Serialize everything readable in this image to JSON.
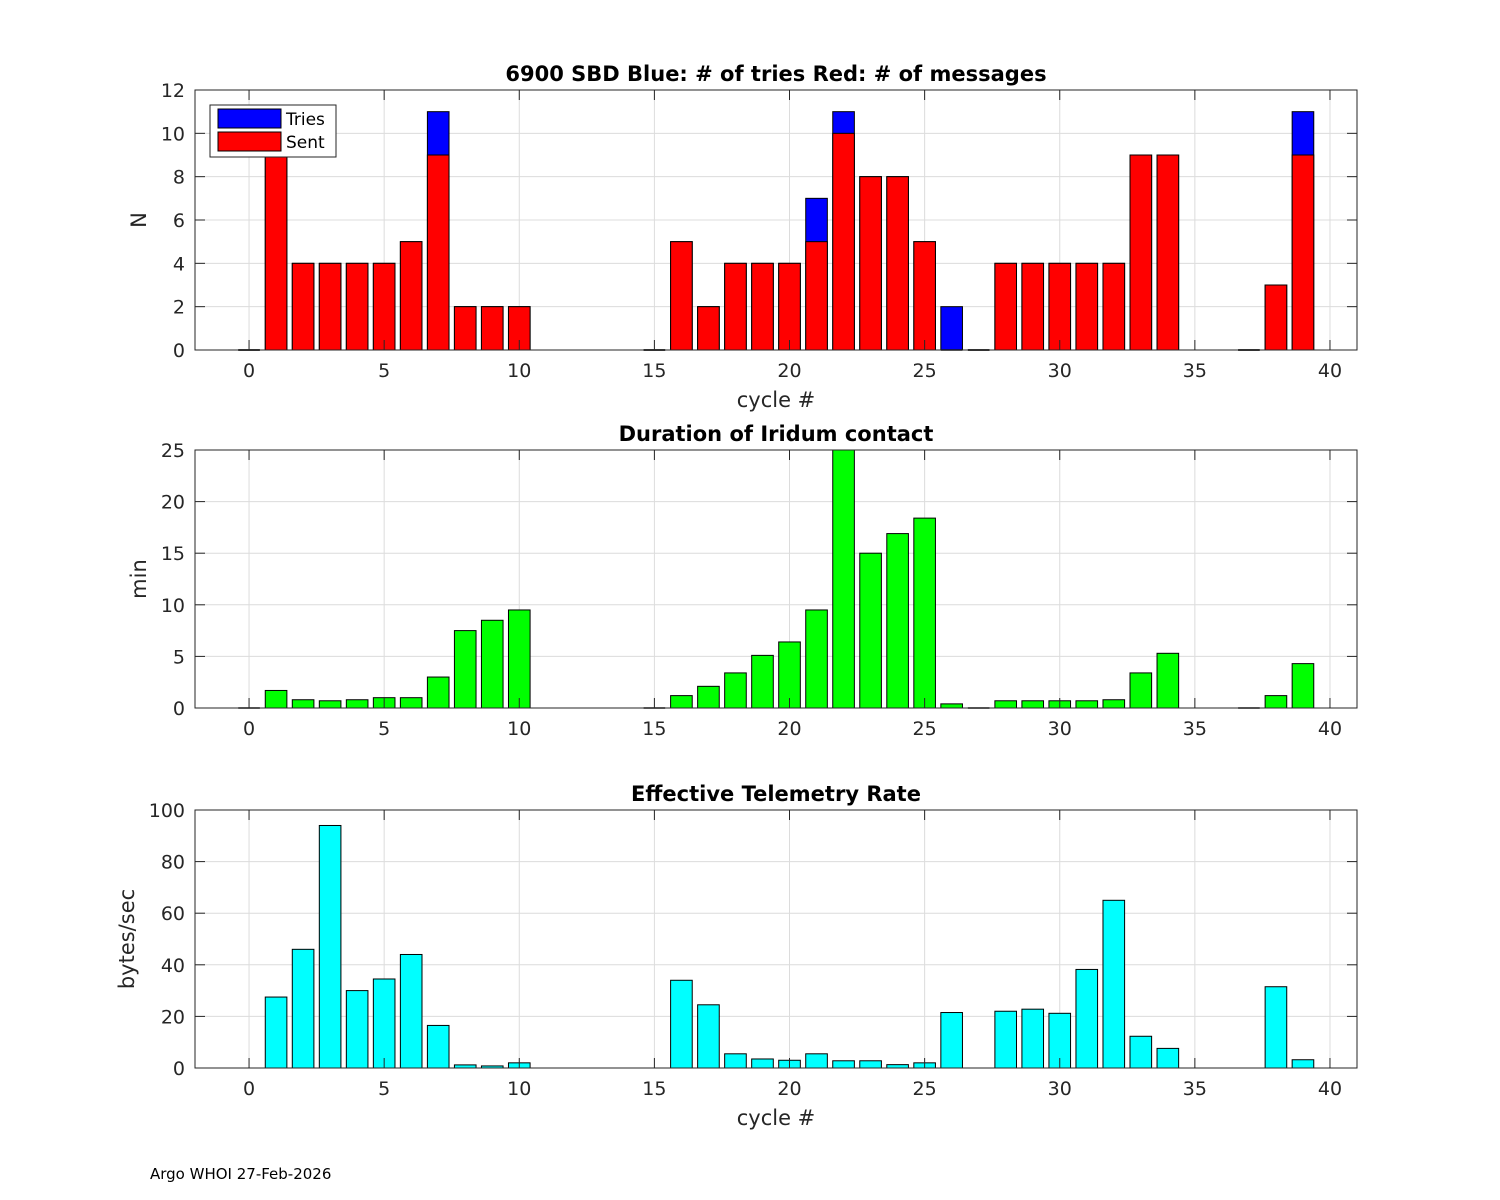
{
  "footer": "Argo WHOI 27-Feb-2026",
  "chart_data": [
    {
      "type": "bar",
      "title": "6900 SBD  Blue: # of tries   Red: # of messages",
      "xlabel": "cycle #",
      "ylabel": "N",
      "xlim": [
        -2,
        41
      ],
      "ylim": [
        0,
        12
      ],
      "xticks": [
        0,
        5,
        10,
        15,
        20,
        25,
        30,
        35,
        40
      ],
      "yticks": [
        0,
        2,
        4,
        6,
        8,
        10,
        12
      ],
      "grid": true,
      "legend": {
        "placement": "top-left",
        "entries": [
          {
            "name": "Tries",
            "color": "#0000ff"
          },
          {
            "name": "Sent",
            "color": "#ff0000"
          }
        ]
      },
      "x": [
        0,
        1,
        2,
        3,
        4,
        5,
        6,
        7,
        8,
        9,
        10,
        15,
        16,
        17,
        18,
        19,
        20,
        21,
        22,
        23,
        24,
        25,
        26,
        27,
        28,
        29,
        30,
        31,
        32,
        33,
        34,
        37,
        38,
        39
      ],
      "series": [
        {
          "name": "Tries",
          "color": "#0000ff",
          "values": [
            0,
            9,
            4,
            4,
            4,
            4,
            5,
            11,
            2,
            2,
            2,
            0,
            5,
            2,
            4,
            4,
            4,
            7,
            11,
            8,
            8,
            5,
            2,
            0,
            4,
            4,
            4,
            4,
            4,
            9,
            9,
            0,
            3,
            11
          ]
        },
        {
          "name": "Sent",
          "color": "#ff0000",
          "values": [
            0,
            9,
            4,
            4,
            4,
            4,
            5,
            9,
            2,
            2,
            2,
            0,
            5,
            2,
            4,
            4,
            4,
            5,
            10,
            8,
            8,
            5,
            0,
            0,
            4,
            4,
            4,
            4,
            4,
            9,
            9,
            0,
            3,
            9
          ]
        }
      ]
    },
    {
      "type": "bar",
      "title": "Duration of Iridum contact",
      "xlabel": "",
      "ylabel": "min",
      "xlim": [
        -2,
        41
      ],
      "ylim": [
        0,
        25
      ],
      "xticks": [
        0,
        5,
        10,
        15,
        20,
        25,
        30,
        35,
        40
      ],
      "yticks": [
        0,
        5,
        10,
        15,
        20,
        25
      ],
      "grid": true,
      "x": [
        0,
        1,
        2,
        3,
        4,
        5,
        6,
        7,
        8,
        9,
        10,
        15,
        16,
        17,
        18,
        19,
        20,
        21,
        22,
        23,
        24,
        25,
        26,
        27,
        28,
        29,
        30,
        31,
        32,
        33,
        34,
        37,
        38,
        39
      ],
      "series": [
        {
          "name": "Duration",
          "color": "#00ff00",
          "values": [
            0,
            1.7,
            0.8,
            0.7,
            0.8,
            1.0,
            1.0,
            3.0,
            7.5,
            8.5,
            9.5,
            0,
            1.2,
            2.1,
            3.4,
            5.1,
            6.4,
            9.5,
            25,
            15.0,
            16.9,
            18.4,
            0.4,
            0,
            0.7,
            0.7,
            0.7,
            0.7,
            0.8,
            3.4,
            5.3,
            0,
            1.2,
            4.3
          ]
        }
      ]
    },
    {
      "type": "bar",
      "title": "Effective Telemetry Rate",
      "xlabel": "cycle #",
      "ylabel": "bytes/sec",
      "xlim": [
        -2,
        41
      ],
      "ylim": [
        0,
        100
      ],
      "xticks": [
        0,
        5,
        10,
        15,
        20,
        25,
        30,
        35,
        40
      ],
      "yticks": [
        0,
        20,
        40,
        60,
        80,
        100
      ],
      "grid": true,
      "x": [
        1,
        2,
        3,
        4,
        5,
        6,
        7,
        8,
        9,
        10,
        16,
        17,
        18,
        19,
        20,
        21,
        22,
        23,
        24,
        25,
        26,
        28,
        29,
        30,
        31,
        32,
        33,
        34,
        38,
        39
      ],
      "series": [
        {
          "name": "Rate",
          "color": "#00ffff",
          "values": [
            27.5,
            46,
            94,
            30,
            34.5,
            44,
            16.5,
            1.2,
            0.8,
            2.0,
            34,
            24.5,
            5.5,
            3.5,
            3.0,
            5.5,
            2.8,
            2.8,
            1.3,
            2.0,
            21.5,
            22,
            22.8,
            21.2,
            38.2,
            65,
            12.3,
            7.6,
            31.5,
            3.2
          ]
        }
      ]
    }
  ]
}
